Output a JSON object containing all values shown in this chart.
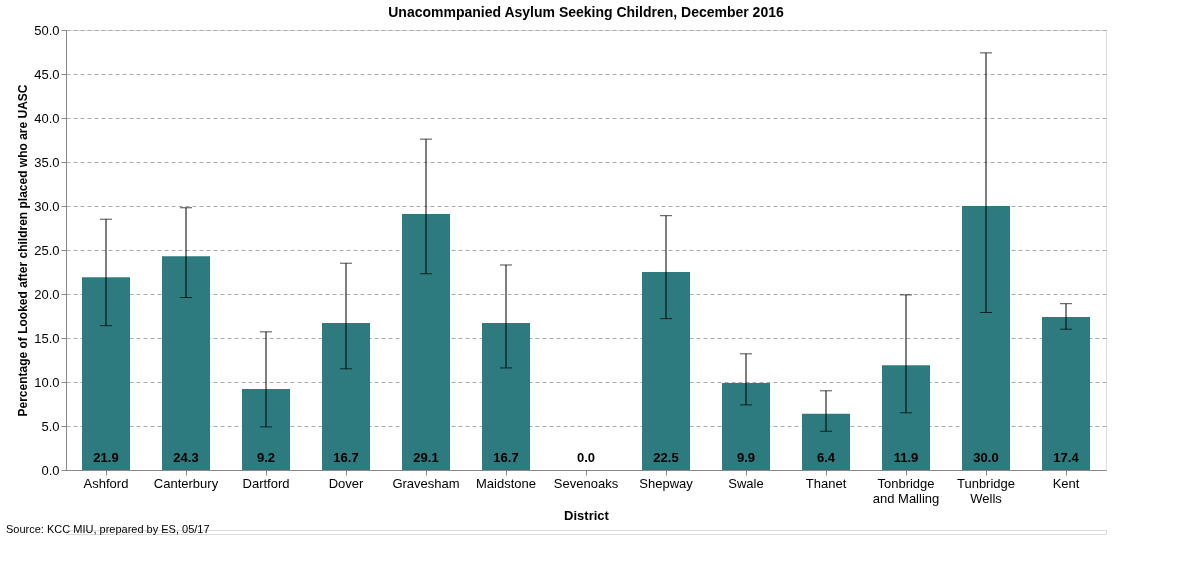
{
  "chart_data": {
    "type": "bar",
    "title": "Unacommpanied  Asylum Seeking Children, December 2016",
    "xlabel": "District",
    "ylabel": "Percentage of Looked after children placed who are UASC",
    "categories": [
      "Ashford",
      "Canterbury",
      "Dartford",
      "Dover",
      "Gravesham",
      "Maidstone",
      "Sevenoaks",
      "Shepway",
      "Swale",
      "Thanet",
      "Tonbridge\nand Malling",
      "Tunbridge\nWells",
      "Kent"
    ],
    "values": [
      21.9,
      24.3,
      9.2,
      16.7,
      29.1,
      16.7,
      0.0,
      22.5,
      9.9,
      6.4,
      11.9,
      30.0,
      17.4
    ],
    "errors": [
      [
        16.4,
        28.5
      ],
      [
        19.6,
        29.8
      ],
      [
        4.9,
        15.7
      ],
      [
        11.5,
        23.5
      ],
      [
        22.3,
        37.6
      ],
      [
        11.6,
        23.3
      ],
      null,
      [
        17.2,
        28.9
      ],
      [
        7.4,
        13.2
      ],
      [
        4.4,
        9.0
      ],
      [
        6.5,
        19.9
      ],
      [
        17.9,
        47.4
      ],
      [
        16.0,
        18.9
      ]
    ],
    "color": "#2e7b7f",
    "value_labels": [
      "21.9",
      "24.3",
      "9.2",
      "16.7",
      "29.1",
      "16.7",
      "0.0",
      "22.5",
      "9.9",
      "6.4",
      "11.9",
      "30.0",
      "17.4"
    ],
    "grid": "y",
    "ylim": [
      0,
      50
    ],
    "yticks": [
      {
        "value": 0,
        "label": "0.0"
      },
      {
        "value": 5,
        "label": "5.0"
      },
      {
        "value": 10,
        "label": "10.0"
      },
      {
        "value": 15,
        "label": "15.0"
      },
      {
        "value": 20,
        "label": "20.0"
      },
      {
        "value": 25,
        "label": "25.0"
      },
      {
        "value": 30,
        "label": "30.0"
      },
      {
        "value": 35,
        "label": "35.0"
      },
      {
        "value": 40,
        "label": "40.0"
      },
      {
        "value": 45,
        "label": "45.0"
      },
      {
        "value": 50,
        "label": "50.0"
      }
    ],
    "annotations": [
      "Source: KCC MIU, prepared by ES, 05/17"
    ]
  }
}
